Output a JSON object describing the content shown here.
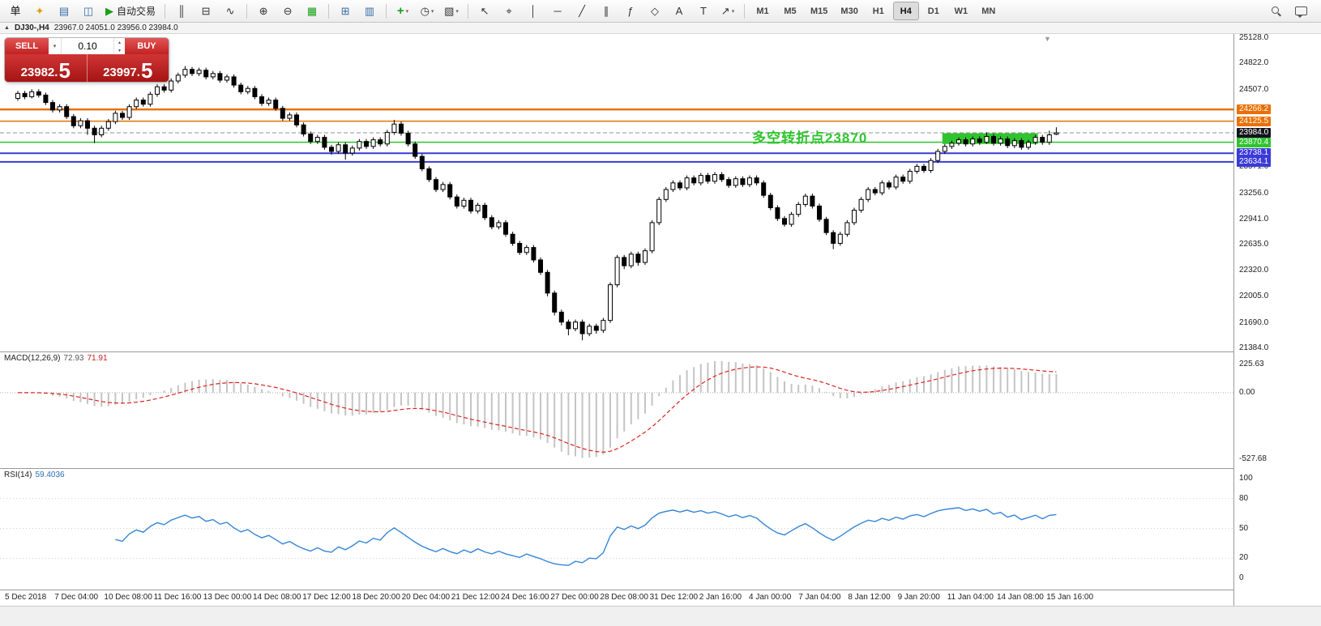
{
  "toolbar": {
    "groups": [
      {
        "name": "file-group",
        "items": [
          {
            "name": "orders-text",
            "glyph": "单",
            "color": "#111",
            "interactable": false
          },
          {
            "name": "new-order-icon",
            "glyph": "✦",
            "color": "#e0a000"
          },
          {
            "name": "market-watch-icon",
            "glyph": "▤",
            "color": "#3a6ea5"
          },
          {
            "name": "navigator-icon",
            "glyph": "◫",
            "color": "#3a6ea5"
          },
          {
            "name": "autotrade-button",
            "glyph": "▶",
            "color": "#18a018",
            "label": "自动交易"
          }
        ]
      },
      {
        "name": "chart-type-group",
        "items": [
          {
            "name": "bar-chart-icon",
            "glyph": "║",
            "color": "#333"
          },
          {
            "name": "candlestick-chart-icon",
            "glyph": "⊟",
            "color": "#333"
          },
          {
            "name": "line-chart-icon",
            "glyph": "∿",
            "color": "#333"
          }
        ]
      },
      {
        "name": "zoom-group",
        "items": [
          {
            "name": "zoom-in-icon",
            "glyph": "⊕",
            "color": "#333"
          },
          {
            "name": "zoom-out-icon",
            "glyph": "⊖",
            "color": "#333"
          },
          {
            "name": "tile-windows-icon",
            "glyph": "▦",
            "color": "#18a018"
          }
        ]
      },
      {
        "name": "window-group",
        "items": [
          {
            "name": "new-chart-icon",
            "glyph": "⊞",
            "color": "#3a6ea5"
          },
          {
            "name": "chart-list-icon",
            "glyph": "▥",
            "color": "#3a6ea5"
          }
        ]
      },
      {
        "name": "insert-group",
        "items": [
          {
            "name": "indicators-icon",
            "glyph": "+",
            "color": "#18a018",
            "caret": true
          },
          {
            "name": "periods-icon",
            "glyph": "◷",
            "color": "#333",
            "caret": true
          },
          {
            "name": "templates-icon",
            "glyph": "▧",
            "color": "#333",
            "caret": true
          }
        ]
      },
      {
        "name": "tools-group",
        "items": [
          {
            "name": "cursor-icon",
            "glyph": "↖",
            "color": "#333"
          },
          {
            "name": "crosshair-icon",
            "glyph": "⌖",
            "color": "#333"
          },
          {
            "name": "vertical-line-icon",
            "glyph": "│",
            "color": "#333"
          },
          {
            "name": "horizontal-line-icon",
            "glyph": "─",
            "color": "#333"
          },
          {
            "name": "trendline-icon",
            "glyph": "╱",
            "color": "#333"
          },
          {
            "name": "channel-icon",
            "glyph": "∥",
            "color": "#333"
          },
          {
            "name": "fibonacci-icon",
            "glyph": "ƒ",
            "color": "#333"
          },
          {
            "name": "shapes-icon",
            "glyph": "◇",
            "color": "#333"
          },
          {
            "name": "text-icon",
            "glyph": "A",
            "color": "#333"
          },
          {
            "name": "textlabel-icon",
            "glyph": "T",
            "color": "#333"
          },
          {
            "name": "arrows-icon",
            "glyph": "↗",
            "color": "#333",
            "caret": true
          }
        ]
      }
    ],
    "timeframes": [
      "M1",
      "M5",
      "M15",
      "M30",
      "H1",
      "H4",
      "D1",
      "W1",
      "MN"
    ],
    "active_timeframe": "H4"
  },
  "chart_title": {
    "marker": "▲",
    "symbol": "DJ30-,H4",
    "ohlc": "23967.0 24051.0 23956.0 23984.0"
  },
  "trade_panel": {
    "sell_label": "SELL",
    "buy_label": "BUY",
    "volume": "0.10",
    "bid_main": "23982.",
    "bid_big": "5",
    "ask_main": "23997.",
    "ask_big": "5"
  },
  "chart_data": {
    "type": "candlestick",
    "symbol": "DJ30",
    "timeframe": "H4",
    "ylim": [
      21384.0,
      25128.0
    ],
    "shift_marker": "▼",
    "current_price": {
      "value": 23984.0,
      "label": "23984.0",
      "color": "#14141e"
    },
    "hlines": [
      {
        "price": 24266.2,
        "label": "24266.2",
        "color": "#e87000",
        "width": 2.5
      },
      {
        "price": 24125.5,
        "label": "24125.5",
        "color": "#e87000",
        "width": 1.5
      },
      {
        "price": 23870.4,
        "label": "23870.4",
        "color": "#2fc42f",
        "width": 1.5
      },
      {
        "price": 23738.1,
        "label": "23738.1",
        "color": "#3a3ad9",
        "width": 2
      },
      {
        "price": 23634.1,
        "label": "23634.1",
        "color": "#3a3ad9",
        "width": 2
      }
    ],
    "axis_ticks": [
      {
        "price": 25128.0,
        "label": "25128.0"
      },
      {
        "price": 24822.0,
        "label": "24822.0"
      },
      {
        "price": 24507.0,
        "label": "24507.0"
      },
      {
        "price": 23571.0,
        "label": "23571.0"
      },
      {
        "price": 23256.0,
        "label": "23256.0"
      },
      {
        "price": 22941.0,
        "label": "22941.0"
      },
      {
        "price": 22635.0,
        "label": "22635.0"
      },
      {
        "price": 22320.0,
        "label": "22320.0"
      },
      {
        "price": 22005.0,
        "label": "22005.0"
      },
      {
        "price": 21690.0,
        "label": "21690.0"
      },
      {
        "price": 21384.0,
        "label": "21384.0"
      }
    ],
    "zone": {
      "from_index": 133,
      "to_index": 146,
      "price_top": 23980,
      "price_bottom": 23850,
      "color": "#2fc42f"
    },
    "annotation": {
      "text": "多空转折点23870",
      "color": "#2fc42f"
    },
    "macd": {
      "name": "MACD(12,26,9)",
      "value_main": "72.93",
      "value_signal": "71.91",
      "params": {
        "fast": 12,
        "slow": 26,
        "signal": 9
      },
      "ticks": [
        {
          "label": "225.63",
          "value": 225.63
        },
        {
          "label": "0.00",
          "value": 0
        },
        {
          "label": "-527.68",
          "value": -527.68
        }
      ],
      "histogram_color": "#c4c4c4",
      "signal_color": "#e02020"
    },
    "rsi": {
      "name": "RSI(14)",
      "value": "59.4036",
      "params": {
        "period": 14
      },
      "levels": [
        80,
        50,
        20
      ],
      "axis": [
        {
          "label": "100",
          "value": 100
        },
        {
          "label": "80",
          "value": 80
        },
        {
          "label": "50",
          "value": 50
        },
        {
          "label": "20",
          "value": 20
        },
        {
          "label": "0",
          "value": 0
        }
      ],
      "line_color": "#3585d6"
    },
    "time_labels": [
      "5 Dec 2018",
      "7 Dec 04:00",
      "10 Dec 08:00",
      "11 Dec 16:00",
      "13 Dec 00:00",
      "14 Dec 08:00",
      "17 Dec 12:00",
      "18 Dec 20:00",
      "20 Dec 04:00",
      "21 Dec 12:00",
      "24 Dec 16:00",
      "27 Dec 00:00",
      "28 Dec 08:00",
      "31 Dec 12:00",
      "2 Jan 16:00",
      "4 Jan 00:00",
      "7 Jan 04:00",
      "8 Jan 12:00",
      "9 Jan 20:00",
      "11 Jan 04:00",
      "14 Jan 08:00",
      "15 Jan 16:00"
    ],
    "ohlc": [
      [
        24400,
        24490,
        24370,
        24460
      ],
      [
        24460,
        24490,
        24390,
        24420
      ],
      [
        24420,
        24510,
        24400,
        24480
      ],
      [
        24480,
        24510,
        24410,
        24440
      ],
      [
        24440,
        24470,
        24320,
        24350
      ],
      [
        24350,
        24380,
        24230,
        24260
      ],
      [
        24260,
        24330,
        24230,
        24300
      ],
      [
        24300,
        24330,
        24150,
        24180
      ],
      [
        24180,
        24210,
        24040,
        24070
      ],
      [
        24070,
        24160,
        24040,
        24130
      ],
      [
        24130,
        24160,
        23960,
        24040
      ],
      [
        24040,
        24070,
        23860,
        23960
      ],
      [
        23960,
        24070,
        23930,
        24040
      ],
      [
        24040,
        24150,
        24010,
        24120
      ],
      [
        24120,
        24250,
        24090,
        24220
      ],
      [
        24220,
        24250,
        24140,
        24170
      ],
      [
        24170,
        24330,
        24140,
        24300
      ],
      [
        24300,
        24410,
        24270,
        24380
      ],
      [
        24380,
        24410,
        24300,
        24330
      ],
      [
        24330,
        24480,
        24300,
        24450
      ],
      [
        24450,
        24570,
        24420,
        24540
      ],
      [
        24540,
        24570,
        24470,
        24500
      ],
      [
        24500,
        24640,
        24470,
        24610
      ],
      [
        24610,
        24710,
        24580,
        24680
      ],
      [
        24680,
        24790,
        24650,
        24750
      ],
      [
        24750,
        24780,
        24670,
        24700
      ],
      [
        24700,
        24770,
        24670,
        24740
      ],
      [
        24740,
        24770,
        24630,
        24660
      ],
      [
        24660,
        24730,
        24630,
        24700
      ],
      [
        24700,
        24730,
        24590,
        24620
      ],
      [
        24620,
        24690,
        24590,
        24660
      ],
      [
        24660,
        24690,
        24530,
        24560
      ],
      [
        24560,
        24590,
        24450,
        24480
      ],
      [
        24480,
        24550,
        24450,
        24520
      ],
      [
        24520,
        24550,
        24390,
        24420
      ],
      [
        24420,
        24450,
        24310,
        24340
      ],
      [
        24340,
        24410,
        24310,
        24380
      ],
      [
        24380,
        24410,
        24250,
        24280
      ],
      [
        24280,
        24310,
        24130,
        24160
      ],
      [
        24160,
        24230,
        24130,
        24200
      ],
      [
        24200,
        24230,
        24050,
        24080
      ],
      [
        24080,
        24110,
        23940,
        23970
      ],
      [
        23970,
        24000,
        23850,
        23880
      ],
      [
        23880,
        23960,
        23850,
        23930
      ],
      [
        23930,
        23960,
        23780,
        23810
      ],
      [
        23810,
        23840,
        23720,
        23760
      ],
      [
        23760,
        23870,
        23730,
        23840
      ],
      [
        23840,
        23870,
        23660,
        23740
      ],
      [
        23740,
        23830,
        23710,
        23800
      ],
      [
        23800,
        23910,
        23770,
        23880
      ],
      [
        23880,
        23910,
        23790,
        23820
      ],
      [
        23820,
        23930,
        23790,
        23900
      ],
      [
        23900,
        23930,
        23820,
        23850
      ],
      [
        23850,
        24020,
        23820,
        23990
      ],
      [
        23990,
        24140,
        23960,
        24090
      ],
      [
        24090,
        24120,
        23950,
        23980
      ],
      [
        23980,
        24010,
        23820,
        23850
      ],
      [
        23850,
        23880,
        23670,
        23700
      ],
      [
        23700,
        23730,
        23520,
        23550
      ],
      [
        23550,
        23580,
        23390,
        23420
      ],
      [
        23420,
        23450,
        23270,
        23300
      ],
      [
        23300,
        23390,
        23270,
        23360
      ],
      [
        23360,
        23390,
        23180,
        23210
      ],
      [
        23210,
        23240,
        23070,
        23100
      ],
      [
        23100,
        23200,
        23070,
        23170
      ],
      [
        23170,
        23200,
        23010,
        23040
      ],
      [
        23040,
        23140,
        23010,
        23110
      ],
      [
        23110,
        23140,
        22930,
        22960
      ],
      [
        22960,
        22990,
        22820,
        22850
      ],
      [
        22850,
        22930,
        22820,
        22900
      ],
      [
        22900,
        22930,
        22730,
        22760
      ],
      [
        22760,
        22790,
        22620,
        22650
      ],
      [
        22650,
        22680,
        22510,
        22540
      ],
      [
        22540,
        22630,
        22510,
        22600
      ],
      [
        22600,
        22630,
        22420,
        22450
      ],
      [
        22450,
        22480,
        22270,
        22300
      ],
      [
        22300,
        22330,
        22010,
        22050
      ],
      [
        22050,
        22080,
        21780,
        21820
      ],
      [
        21820,
        21850,
        21660,
        21700
      ],
      [
        21700,
        21730,
        21540,
        21620
      ],
      [
        21620,
        21730,
        21590,
        21700
      ],
      [
        21700,
        21730,
        21480,
        21560
      ],
      [
        21560,
        21680,
        21530,
        21650
      ],
      [
        21650,
        21680,
        21560,
        21600
      ],
      [
        21600,
        21750,
        21570,
        21720
      ],
      [
        21720,
        22180,
        21690,
        22150
      ],
      [
        22150,
        22510,
        22120,
        22480
      ],
      [
        22480,
        22510,
        22340,
        22380
      ],
      [
        22380,
        22550,
        22350,
        22520
      ],
      [
        22520,
        22550,
        22380,
        22420
      ],
      [
        22420,
        22590,
        22390,
        22560
      ],
      [
        22560,
        22930,
        22530,
        22900
      ],
      [
        22900,
        23210,
        22870,
        23180
      ],
      [
        23180,
        23330,
        23150,
        23300
      ],
      [
        23300,
        23410,
        23270,
        23380
      ],
      [
        23380,
        23410,
        23290,
        23320
      ],
      [
        23320,
        23470,
        23290,
        23440
      ],
      [
        23440,
        23470,
        23350,
        23380
      ],
      [
        23380,
        23500,
        23350,
        23470
      ],
      [
        23470,
        23500,
        23370,
        23400
      ],
      [
        23400,
        23510,
        23370,
        23480
      ],
      [
        23480,
        23510,
        23390,
        23420
      ],
      [
        23420,
        23450,
        23320,
        23350
      ],
      [
        23350,
        23460,
        23320,
        23430
      ],
      [
        23430,
        23460,
        23330,
        23360
      ],
      [
        23360,
        23470,
        23330,
        23440
      ],
      [
        23440,
        23470,
        23350,
        23380
      ],
      [
        23380,
        23410,
        23200,
        23230
      ],
      [
        23230,
        23260,
        23050,
        23080
      ],
      [
        23080,
        23110,
        22920,
        22950
      ],
      [
        22950,
        22980,
        22850,
        22880
      ],
      [
        22880,
        23030,
        22850,
        23000
      ],
      [
        23000,
        23150,
        22970,
        23120
      ],
      [
        23120,
        23250,
        23090,
        23220
      ],
      [
        23220,
        23250,
        23070,
        23100
      ],
      [
        23100,
        23130,
        22910,
        22940
      ],
      [
        22940,
        22970,
        22750,
        22780
      ],
      [
        22780,
        22810,
        22580,
        22650
      ],
      [
        22650,
        22790,
        22620,
        22760
      ],
      [
        22760,
        22930,
        22730,
        22900
      ],
      [
        22900,
        23080,
        22870,
        23050
      ],
      [
        23050,
        23210,
        23020,
        23180
      ],
      [
        23180,
        23330,
        23150,
        23300
      ],
      [
        23300,
        23330,
        23230,
        23260
      ],
      [
        23260,
        23410,
        23230,
        23380
      ],
      [
        23380,
        23410,
        23300,
        23330
      ],
      [
        23330,
        23480,
        23300,
        23450
      ],
      [
        23450,
        23480,
        23370,
        23400
      ],
      [
        23400,
        23550,
        23370,
        23520
      ],
      [
        23520,
        23610,
        23490,
        23580
      ],
      [
        23580,
        23610,
        23500,
        23530
      ],
      [
        23530,
        23680,
        23500,
        23650
      ],
      [
        23650,
        23790,
        23620,
        23760
      ],
      [
        23760,
        23850,
        23730,
        23820
      ],
      [
        23820,
        23890,
        23790,
        23860
      ],
      [
        23860,
        23930,
        23830,
        23900
      ],
      [
        23900,
        23930,
        23820,
        23850
      ],
      [
        23850,
        23940,
        23820,
        23910
      ],
      [
        23910,
        23940,
        23840,
        23870
      ],
      [
        23870,
        23990,
        23850,
        23940
      ],
      [
        23940,
        23970,
        23830,
        23860
      ],
      [
        23860,
        23940,
        23830,
        23910
      ],
      [
        23910,
        23940,
        23800,
        23830
      ],
      [
        23830,
        23920,
        23800,
        23890
      ],
      [
        23890,
        23920,
        23780,
        23810
      ],
      [
        23810,
        23900,
        23780,
        23870
      ],
      [
        23870,
        23960,
        23840,
        23930
      ],
      [
        23930,
        23960,
        23840,
        23870
      ],
      [
        23870,
        24010,
        23840,
        23960
      ],
      [
        23967,
        24051,
        23956,
        23984
      ]
    ]
  }
}
